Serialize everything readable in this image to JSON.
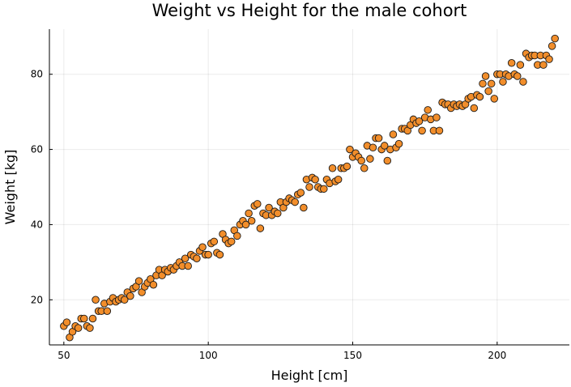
{
  "colors": {
    "marker_fill": "#F28E2B",
    "marker_stroke": "#1a1a1a",
    "background": "#ffffff"
  },
  "chart_data": {
    "type": "scatter",
    "title": "Weight vs Height for the male cohort",
    "xlabel": "Height [cm]",
    "ylabel": "Weight [kg]",
    "xlim": [
      45,
      225
    ],
    "ylim": [
      8,
      92
    ],
    "xticks": [
      50,
      100,
      150,
      200
    ],
    "yticks": [
      20,
      40,
      60,
      80
    ],
    "grid": true,
    "legend": false,
    "series": [
      {
        "name": "male cohort",
        "points": [
          [
            50,
            13
          ],
          [
            51,
            14
          ],
          [
            52,
            10
          ],
          [
            53,
            11.5
          ],
          [
            54,
            13
          ],
          [
            55,
            12.5
          ],
          [
            56,
            15
          ],
          [
            57,
            15
          ],
          [
            58,
            13
          ],
          [
            59,
            12.5
          ],
          [
            60,
            15
          ],
          [
            61,
            20
          ],
          [
            62,
            17
          ],
          [
            63,
            17
          ],
          [
            64,
            19
          ],
          [
            65,
            17
          ],
          [
            66,
            19.5
          ],
          [
            67,
            20.5
          ],
          [
            68,
            19.5
          ],
          [
            69,
            20
          ],
          [
            70,
            20.5
          ],
          [
            71,
            20
          ],
          [
            72,
            22
          ],
          [
            73,
            21
          ],
          [
            74,
            23
          ],
          [
            75,
            23.5
          ],
          [
            76,
            25
          ],
          [
            77,
            22
          ],
          [
            78,
            23.5
          ],
          [
            79,
            24.5
          ],
          [
            80,
            25.5
          ],
          [
            81,
            24
          ],
          [
            82,
            26.5
          ],
          [
            83,
            28
          ],
          [
            84,
            26.5
          ],
          [
            85,
            28
          ],
          [
            86,
            27.5
          ],
          [
            87,
            28.5
          ],
          [
            88,
            28
          ],
          [
            89,
            29
          ],
          [
            90,
            30
          ],
          [
            91,
            29
          ],
          [
            92,
            31
          ],
          [
            93,
            29
          ],
          [
            94,
            32
          ],
          [
            95,
            31.5
          ],
          [
            96,
            31
          ],
          [
            97,
            33
          ],
          [
            98,
            34
          ],
          [
            99,
            32
          ],
          [
            100,
            32
          ],
          [
            101,
            35
          ],
          [
            102,
            35.5
          ],
          [
            103,
            32.5
          ],
          [
            104,
            32
          ],
          [
            105,
            37.5
          ],
          [
            106,
            36
          ],
          [
            107,
            35
          ],
          [
            108,
            35.5
          ],
          [
            109,
            38.5
          ],
          [
            110,
            37
          ],
          [
            111,
            40
          ],
          [
            112,
            41
          ],
          [
            113,
            40
          ],
          [
            114,
            43
          ],
          [
            115,
            41
          ],
          [
            116,
            45
          ],
          [
            117,
            45.5
          ],
          [
            118,
            39
          ],
          [
            119,
            43
          ],
          [
            120,
            42.5
          ],
          [
            121,
            44.5
          ],
          [
            122,
            42.5
          ],
          [
            123,
            43.5
          ],
          [
            124,
            43
          ],
          [
            125,
            46
          ],
          [
            126,
            44.5
          ],
          [
            127,
            46
          ],
          [
            128,
            47
          ],
          [
            129,
            46.5
          ],
          [
            130,
            46
          ],
          [
            131,
            48
          ],
          [
            132,
            48.5
          ],
          [
            133,
            44.5
          ],
          [
            134,
            52
          ],
          [
            135,
            50
          ],
          [
            136,
            52.5
          ],
          [
            137,
            52
          ],
          [
            138,
            50
          ],
          [
            139,
            49.5
          ],
          [
            140,
            49.5
          ],
          [
            141,
            52
          ],
          [
            142,
            51
          ],
          [
            143,
            55
          ],
          [
            144,
            51.5
          ],
          [
            145,
            52
          ],
          [
            146,
            55
          ],
          [
            147,
            55
          ],
          [
            148,
            55.5
          ],
          [
            149,
            60
          ],
          [
            150,
            58
          ],
          [
            151,
            59
          ],
          [
            152,
            58
          ],
          [
            153,
            57
          ],
          [
            154,
            55
          ],
          [
            155,
            61
          ],
          [
            156,
            57.5
          ],
          [
            157,
            60.5
          ],
          [
            158,
            63
          ],
          [
            159,
            63
          ],
          [
            160,
            60
          ],
          [
            161,
            61
          ],
          [
            162,
            57
          ],
          [
            163,
            60
          ],
          [
            164,
            64
          ],
          [
            165,
            60.5
          ],
          [
            166,
            61.5
          ],
          [
            167,
            65.5
          ],
          [
            168,
            65.5
          ],
          [
            169,
            65
          ],
          [
            170,
            66.5
          ],
          [
            171,
            68
          ],
          [
            172,
            67
          ],
          [
            173,
            67.5
          ],
          [
            174,
            65
          ],
          [
            175,
            68.5
          ],
          [
            176,
            70.5
          ],
          [
            177,
            68
          ],
          [
            178,
            65
          ],
          [
            179,
            68.5
          ],
          [
            180,
            65
          ],
          [
            181,
            72.5
          ],
          [
            182,
            72
          ],
          [
            183,
            72
          ],
          [
            184,
            71
          ],
          [
            185,
            72
          ],
          [
            186,
            71.5
          ],
          [
            187,
            72
          ],
          [
            188,
            71.5
          ],
          [
            189,
            72
          ],
          [
            190,
            73.5
          ],
          [
            191,
            74
          ],
          [
            192,
            71
          ],
          [
            193,
            74.5
          ],
          [
            194,
            74
          ],
          [
            195,
            77.5
          ],
          [
            196,
            79.5
          ],
          [
            197,
            75.5
          ],
          [
            198,
            77.5
          ],
          [
            199,
            73.5
          ],
          [
            200,
            80
          ],
          [
            201,
            80
          ],
          [
            202,
            78
          ],
          [
            203,
            80
          ],
          [
            204,
            79.5
          ],
          [
            205,
            83
          ],
          [
            206,
            80
          ],
          [
            207,
            79.5
          ],
          [
            208,
            82.5
          ],
          [
            209,
            78
          ],
          [
            210,
            85.5
          ],
          [
            211,
            84.5
          ],
          [
            212,
            85
          ],
          [
            213,
            85
          ],
          [
            214,
            82.5
          ],
          [
            215,
            85
          ],
          [
            216,
            82.5
          ],
          [
            217,
            85
          ],
          [
            218,
            84
          ],
          [
            219,
            87.5
          ],
          [
            220,
            89.5
          ]
        ]
      }
    ]
  }
}
